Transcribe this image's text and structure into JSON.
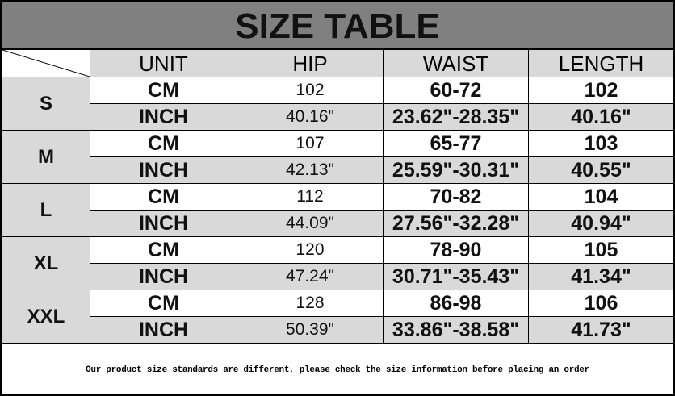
{
  "title": "SIZE TABLE",
  "headers": [
    "UNIT",
    "HIP",
    "WAIST",
    "LENGTH"
  ],
  "sizes": [
    {
      "size": "S",
      "cm": {
        "unit": "CM",
        "hip": "102",
        "waist": "60-72",
        "length": "102"
      },
      "inch": {
        "unit": "INCH",
        "hip": "40.16\"",
        "waist": "23.62\"-28.35\"",
        "length": "40.16\""
      }
    },
    {
      "size": "M",
      "cm": {
        "unit": "CM",
        "hip": "107",
        "waist": "65-77",
        "length": "103"
      },
      "inch": {
        "unit": "INCH",
        "hip": "42.13\"",
        "waist": "25.59\"-30.31\"",
        "length": "40.55\""
      }
    },
    {
      "size": "L",
      "cm": {
        "unit": "CM",
        "hip": "112",
        "waist": "70-82",
        "length": "104"
      },
      "inch": {
        "unit": "INCH",
        "hip": "44.09\"",
        "waist": "27.56\"-32.28\"",
        "length": "40.94\""
      }
    },
    {
      "size": "XL",
      "cm": {
        "unit": "CM",
        "hip": "120",
        "waist": "78-90",
        "length": "105"
      },
      "inch": {
        "unit": "INCH",
        "hip": "47.24\"",
        "waist": "30.71\"-35.43\"",
        "length": "41.34\""
      }
    },
    {
      "size": "XXL",
      "cm": {
        "unit": "CM",
        "hip": "128",
        "waist": "86-98",
        "length": "106"
      },
      "inch": {
        "unit": "INCH",
        "hip": "50.39\"",
        "waist": "33.86\"-38.58\"",
        "length": "41.73\""
      }
    }
  ],
  "footer": "Our product size standards are different, please check the size information before placing an order"
}
